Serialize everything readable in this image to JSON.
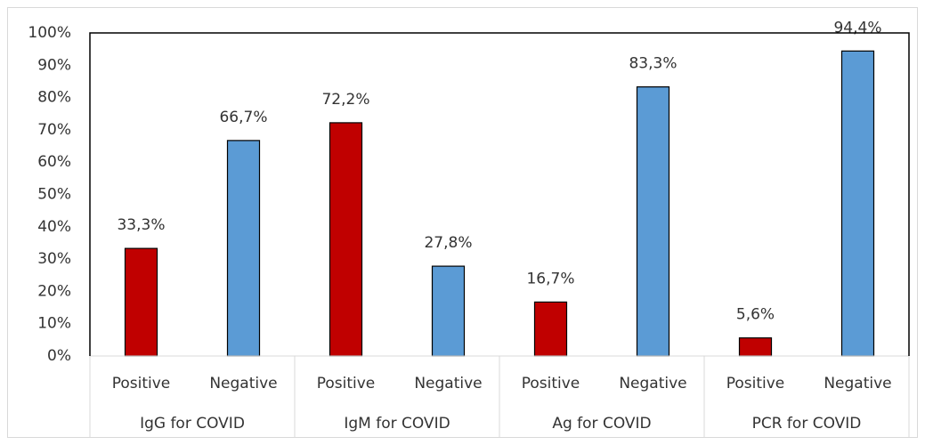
{
  "chart_data": {
    "type": "bar",
    "categories": [
      "Positive",
      "Negative",
      "Positive",
      "Negative",
      "Positive",
      "Negative",
      "Positive",
      "Negative"
    ],
    "groups": [
      "IgG for COVID",
      "IgM for COVID",
      "Ag for COVID",
      "PCR for COVID"
    ],
    "values": [
      33.3,
      66.7,
      72.2,
      27.8,
      16.7,
      83.3,
      5.6,
      94.4
    ],
    "value_labels": [
      "33,3%",
      "66,7%",
      "72,2%",
      "27,8%",
      "16,7%",
      "83,3%",
      "5,6%",
      "94,4%"
    ],
    "colors": [
      "#c00000",
      "#5b9bd5",
      "#c00000",
      "#5b9bd5",
      "#c00000",
      "#5b9bd5",
      "#c00000",
      "#5b9bd5"
    ],
    "ylim": [
      0,
      100
    ],
    "yticks": [
      {
        "value": 0,
        "label": "0%"
      },
      {
        "value": 10,
        "label": "10%"
      },
      {
        "value": 20,
        "label": "20%"
      },
      {
        "value": 30,
        "label": "30%"
      },
      {
        "value": 40,
        "label": "40%"
      },
      {
        "value": 50,
        "label": "50%"
      },
      {
        "value": 60,
        "label": "60%"
      },
      {
        "value": 70,
        "label": "70%"
      },
      {
        "value": 80,
        "label": "80%"
      },
      {
        "value": 90,
        "label": "90%"
      },
      {
        "value": 100,
        "label": "100%"
      }
    ],
    "grid": false
  }
}
